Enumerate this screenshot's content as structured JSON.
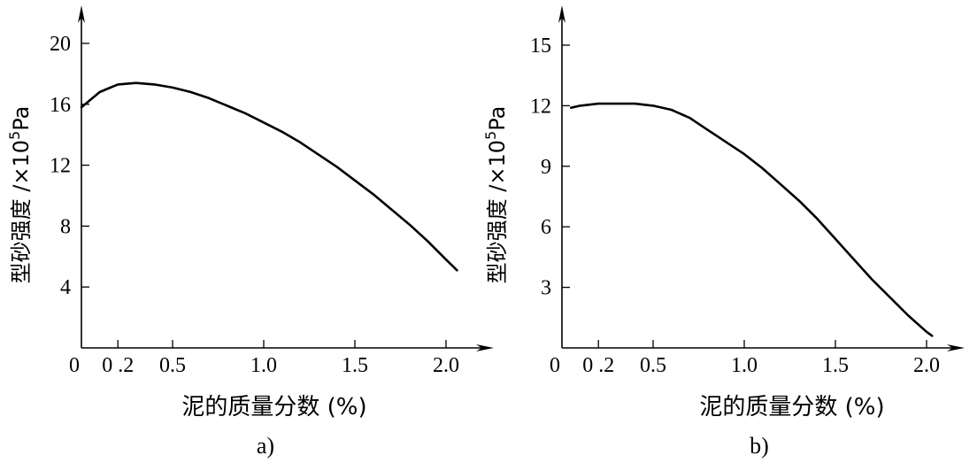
{
  "chart_data": [
    {
      "type": "line",
      "panel_label": "a)",
      "xlabel": "泥的质量分数 (%)",
      "ylabel_text": "型砂强度 /×10",
      "ylabel_exp": "5",
      "ylabel_unit": "Pa",
      "x_ticks": [
        "0",
        "0.2",
        "0.5",
        "1.0",
        "1.5",
        "2.0"
      ],
      "x_tick_values": [
        0,
        0.2,
        0.5,
        1.0,
        1.5,
        2.0
      ],
      "y_ticks": [
        "4",
        "8",
        "12",
        "16",
        "20"
      ],
      "y_tick_values": [
        4,
        8,
        12,
        16,
        20
      ],
      "xlim": [
        0,
        2.2
      ],
      "ylim": [
        0,
        20
      ],
      "grid": false,
      "series": [
        {
          "x": [
            0,
            0.1,
            0.2,
            0.3,
            0.4,
            0.5,
            0.6,
            0.7,
            0.8,
            0.9,
            1.0,
            1.1,
            1.2,
            1.3,
            1.4,
            1.5,
            1.6,
            1.7,
            1.8,
            1.9,
            2.0,
            2.06
          ],
          "y": [
            15.8,
            16.8,
            17.3,
            17.4,
            17.3,
            17.1,
            16.8,
            16.4,
            15.9,
            15.4,
            14.8,
            14.2,
            13.5,
            12.7,
            11.9,
            11.0,
            10.1,
            9.1,
            8.1,
            7.0,
            5.8,
            5.1
          ]
        }
      ]
    },
    {
      "type": "line",
      "panel_label": "b)",
      "xlabel": "泥的质量分数 (%)",
      "ylabel_text": "型砂强度 /×10",
      "ylabel_exp": "5",
      "ylabel_unit": "Pa",
      "x_ticks": [
        "0",
        "0.2",
        "0.5",
        "1.0",
        "1.5",
        "2.0"
      ],
      "x_tick_values": [
        0,
        0.2,
        0.5,
        1.0,
        1.5,
        2.0
      ],
      "y_ticks": [
        "3",
        "6",
        "9",
        "12",
        "15"
      ],
      "y_tick_values": [
        3,
        6,
        9,
        12,
        15
      ],
      "xlim": [
        0,
        2.2
      ],
      "ylim": [
        0,
        15
      ],
      "grid": false,
      "series": [
        {
          "x": [
            0.05,
            0.1,
            0.2,
            0.3,
            0.4,
            0.5,
            0.6,
            0.7,
            0.8,
            0.9,
            1.0,
            1.1,
            1.2,
            1.3,
            1.4,
            1.5,
            1.6,
            1.7,
            1.8,
            1.9,
            2.0,
            2.03
          ],
          "y": [
            11.9,
            12.0,
            12.1,
            12.1,
            12.1,
            12.0,
            11.8,
            11.4,
            10.8,
            10.2,
            9.6,
            8.9,
            8.1,
            7.3,
            6.4,
            5.4,
            4.4,
            3.4,
            2.5,
            1.6,
            0.8,
            0.6
          ]
        }
      ]
    }
  ]
}
